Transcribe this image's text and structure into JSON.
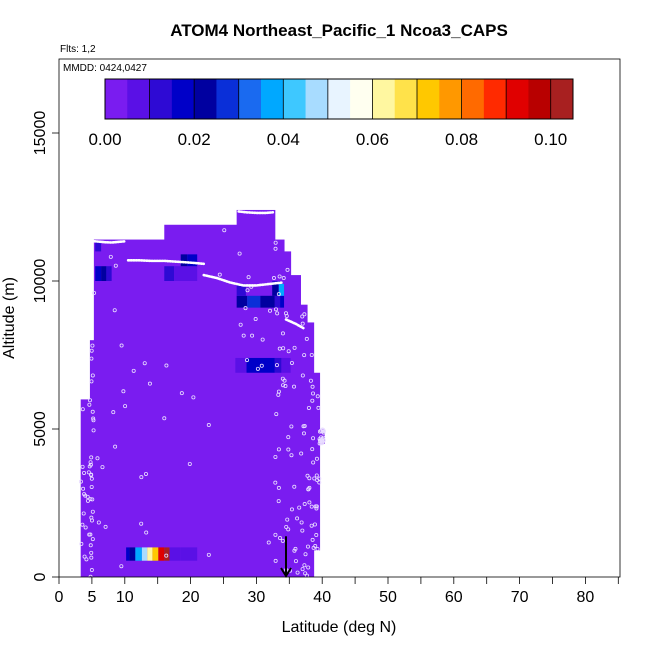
{
  "chart_data": {
    "type": "heatmap",
    "title": "ATOM4 Northeast_Pacific_1 Ncoa3_CAPS",
    "subtitle_flights": "Flts: 1,2",
    "subtitle_dates": "MMDD: 0424,0427",
    "xlabel": "Latitude (deg N)",
    "ylabel": "Altitude (m)",
    "xlim": [
      0,
      85
    ],
    "ylim": [
      0,
      17500
    ],
    "x_ticks_labeled": [
      0,
      5,
      10,
      20,
      30,
      40,
      50,
      60,
      70,
      80
    ],
    "x_tick_labels": [
      "0",
      "5",
      "10",
      "20",
      "30",
      "40",
      "50",
      "60",
      "70",
      "80"
    ],
    "x_ticks_minor": [
      15,
      25,
      35,
      45,
      55,
      65,
      75,
      85
    ],
    "y_ticks": [
      0,
      5000,
      10000,
      15000
    ],
    "y_tick_labels": [
      "0",
      "5000",
      "10000",
      "15000"
    ],
    "colorbar": {
      "min": 0.0,
      "max": 0.105,
      "tick_values": [
        0.0,
        0.02,
        0.04,
        0.06,
        0.08,
        0.1
      ],
      "tick_labels": [
        "0.00",
        "0.02",
        "0.04",
        "0.06",
        "0.08",
        "0.10"
      ],
      "colors": [
        "#7a1cf0",
        "#5a10e6",
        "#2e0ad4",
        "#0000c8",
        "#0000a0",
        "#0a2fd8",
        "#1a6af0",
        "#00a8ff",
        "#3ec8ff",
        "#a8dcff",
        "#e8f4ff",
        "#fffff0",
        "#fff7a0",
        "#ffe24a",
        "#ffc800",
        "#ff9800",
        "#ff6a00",
        "#ff2a00",
        "#e00000",
        "#b80000",
        "#a82020"
      ]
    },
    "background_value": 0.0,
    "coverage_columns": [
      {
        "lat0": 3.3,
        "lat1": 4.7,
        "alt0": 0,
        "alt1": 6000
      },
      {
        "lat0": 4.7,
        "lat1": 5.3,
        "alt0": 0,
        "alt1": 8000
      },
      {
        "lat0": 5.3,
        "lat1": 16.0,
        "alt0": 0,
        "alt1": 11400
      },
      {
        "lat0": 16.0,
        "lat1": 27.0,
        "alt0": 0,
        "alt1": 11900
      },
      {
        "lat0": 27.0,
        "lat1": 32.8,
        "alt0": 0,
        "alt1": 12400
      },
      {
        "lat0": 32.8,
        "lat1": 34.2,
        "alt0": 0,
        "alt1": 11400
      },
      {
        "lat0": 34.2,
        "lat1": 35.2,
        "alt0": 0,
        "alt1": 11000
      },
      {
        "lat0": 35.2,
        "lat1": 36.7,
        "alt0": 0,
        "alt1": 10200
      },
      {
        "lat0": 36.7,
        "lat1": 37.7,
        "alt0": 0,
        "alt1": 9200
      },
      {
        "lat0": 37.7,
        "lat1": 38.7,
        "alt0": 0,
        "alt1": 8600
      },
      {
        "lat0": 38.7,
        "lat1": 39.6,
        "alt0": 900,
        "alt1": 6900
      },
      {
        "lat0": 39.6,
        "lat1": 40.3,
        "alt0": 4500,
        "alt1": 5000
      }
    ],
    "high_value_cells": [
      {
        "lat0": 10.2,
        "lat1": 10.7,
        "alt0": 550,
        "alt1": 1000,
        "value": 0.015
      },
      {
        "lat0": 10.7,
        "lat1": 11.6,
        "alt0": 550,
        "alt1": 1000,
        "value": 0.02
      },
      {
        "lat0": 11.6,
        "lat1": 12.6,
        "alt0": 550,
        "alt1": 1000,
        "value": 0.035
      },
      {
        "lat0": 12.6,
        "lat1": 13.4,
        "alt0": 550,
        "alt1": 1000,
        "value": 0.045
      },
      {
        "lat0": 13.4,
        "lat1": 14.2,
        "alt0": 550,
        "alt1": 1000,
        "value": 0.06
      },
      {
        "lat0": 14.2,
        "lat1": 15.1,
        "alt0": 550,
        "alt1": 1000,
        "value": 0.07
      },
      {
        "lat0": 15.1,
        "lat1": 16.0,
        "alt0": 550,
        "alt1": 1000,
        "value": 0.09
      },
      {
        "lat0": 16.0,
        "lat1": 16.8,
        "alt0": 550,
        "alt1": 1000,
        "value": 0.1
      },
      {
        "lat0": 16.8,
        "lat1": 18.5,
        "alt0": 550,
        "alt1": 1000,
        "value": 0.008
      },
      {
        "lat0": 18.5,
        "lat1": 21.0,
        "alt0": 550,
        "alt1": 1000,
        "value": 0.006
      },
      {
        "lat0": 5.5,
        "lat1": 6.4,
        "alt0": 10000,
        "alt1": 10500,
        "value": 0.015
      },
      {
        "lat0": 6.4,
        "lat1": 7.2,
        "alt0": 10000,
        "alt1": 10500,
        "value": 0.02
      },
      {
        "lat0": 7.2,
        "lat1": 8.0,
        "alt0": 10000,
        "alt1": 10500,
        "value": 0.012
      },
      {
        "lat0": 5.5,
        "lat1": 6.4,
        "alt0": 11000,
        "alt1": 11300,
        "value": 0.012
      },
      {
        "lat0": 16.0,
        "lat1": 17.5,
        "alt0": 10000,
        "alt1": 10500,
        "value": 0.012
      },
      {
        "lat0": 17.5,
        "lat1": 21.0,
        "alt0": 10000,
        "alt1": 10500,
        "value": 0.008
      },
      {
        "lat0": 18.5,
        "lat1": 19.5,
        "alt0": 10500,
        "alt1": 10900,
        "value": 0.02
      },
      {
        "lat0": 19.5,
        "lat1": 21.0,
        "alt0": 10500,
        "alt1": 10900,
        "value": 0.015
      },
      {
        "lat0": 27.0,
        "lat1": 28.6,
        "alt0": 9100,
        "alt1": 9500,
        "value": 0.022
      },
      {
        "lat0": 28.6,
        "lat1": 30.6,
        "alt0": 9100,
        "alt1": 9500,
        "value": 0.028
      },
      {
        "lat0": 30.6,
        "lat1": 32.8,
        "alt0": 9100,
        "alt1": 9500,
        "value": 0.022
      },
      {
        "lat0": 32.8,
        "lat1": 33.6,
        "alt0": 9100,
        "alt1": 9500,
        "value": 0.01
      },
      {
        "lat0": 33.6,
        "lat1": 34.2,
        "alt0": 9100,
        "alt1": 9500,
        "value": 0.018
      },
      {
        "lat0": 27.0,
        "lat1": 28.4,
        "alt0": 9500,
        "alt1": 9900,
        "value": 0.012
      },
      {
        "lat0": 32.4,
        "lat1": 33.4,
        "alt0": 9500,
        "alt1": 9900,
        "value": 0.02
      },
      {
        "lat0": 33.4,
        "lat1": 34.2,
        "alt0": 9500,
        "alt1": 9900,
        "value": 0.035
      },
      {
        "lat0": 32.4,
        "lat1": 33.6,
        "alt0": 9900,
        "alt1": 10000,
        "value": 0.012
      },
      {
        "lat0": 26.8,
        "lat1": 28.5,
        "alt0": 6900,
        "alt1": 7400,
        "value": 0.008
      },
      {
        "lat0": 28.5,
        "lat1": 32.8,
        "alt0": 6900,
        "alt1": 7400,
        "value": 0.015
      },
      {
        "lat0": 32.8,
        "lat1": 33.8,
        "alt0": 6900,
        "alt1": 7400,
        "value": 0.012
      },
      {
        "lat0": 33.8,
        "lat1": 35.2,
        "alt0": 6900,
        "alt1": 7400,
        "value": 0.008
      }
    ],
    "flight_tracks": [
      {
        "lat": [
          5.0,
          6.0,
          7.0,
          8.0,
          9.0,
          10.0
        ],
        "alt": [
          11350,
          11330,
          11310,
          11300,
          11320,
          11340
        ]
      },
      {
        "lat": [
          10.5,
          12.0,
          14.0,
          16.0,
          18.0,
          20.0,
          22.0
        ],
        "alt": [
          10700,
          10700,
          10680,
          10680,
          10650,
          10620,
          10580
        ]
      },
      {
        "lat": [
          22.0,
          24.0,
          26.0,
          28.0,
          30.0,
          32.0,
          34.0
        ],
        "alt": [
          10200,
          10100,
          9950,
          9850,
          9850,
          9900,
          9950
        ]
      },
      {
        "lat": [
          27.3,
          28.5,
          30.0,
          31.5,
          32.5
        ],
        "alt": [
          12350,
          12320,
          12300,
          12300,
          12320
        ]
      },
      {
        "lat": [
          34.5,
          35.0,
          36.0,
          37.2
        ],
        "alt": [
          8700,
          8650,
          8550,
          8400
        ]
      }
    ],
    "annotation_arrow": {
      "lat": 34.5,
      "alt_from": 700,
      "alt_to": 0
    }
  }
}
